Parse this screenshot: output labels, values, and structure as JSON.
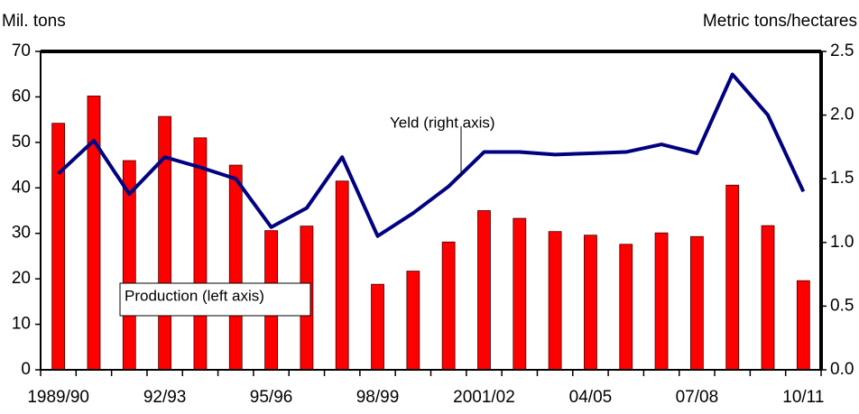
{
  "chart_data": {
    "type": "bar_line",
    "y_label": "Mil. tons",
    "y2_label": "Metric tons/hectares",
    "categories": [
      "1989/90",
      null,
      null,
      "92/93",
      null,
      null,
      "95/96",
      null,
      null,
      "98/99",
      null,
      null,
      "2001/02",
      null,
      null,
      "04/05",
      null,
      null,
      "07/08",
      null,
      null,
      "10/11"
    ],
    "series": [
      {
        "name": "Production (left axis)",
        "type": "bar",
        "color": "#ff0000",
        "values": [
          54.2,
          60.2,
          46,
          55.7,
          51,
          45,
          30.6,
          31.6,
          41.5,
          18.8,
          21.7,
          28.1,
          35,
          33.3,
          30.4,
          29.6,
          27.6,
          30.1,
          29.3,
          40.6,
          31.7,
          19.6
        ]
      },
      {
        "name": "Yeld (right axis)",
        "type": "line",
        "axis": "y2",
        "color": "#000080",
        "values": [
          1.54,
          1.8,
          1.38,
          1.67,
          1.59,
          1.5,
          1.12,
          1.27,
          1.67,
          1.05,
          1.23,
          1.44,
          1.71,
          1.71,
          1.69,
          1.7,
          1.71,
          1.77,
          1.7,
          2.32,
          2.0,
          1.4
        ]
      }
    ],
    "ylim": [
      0,
      70
    ],
    "yticks": [
      0,
      10,
      20,
      30,
      40,
      50,
      60,
      70
    ],
    "y2lim": [
      0,
      2.5
    ],
    "y2ticks": [
      {
        "value": 0,
        "label": "0.0"
      },
      0.5,
      {
        "value": 1,
        "label": "1.0"
      },
      1.5,
      {
        "value": 2,
        "label": "2.0"
      },
      2.5
    ]
  }
}
